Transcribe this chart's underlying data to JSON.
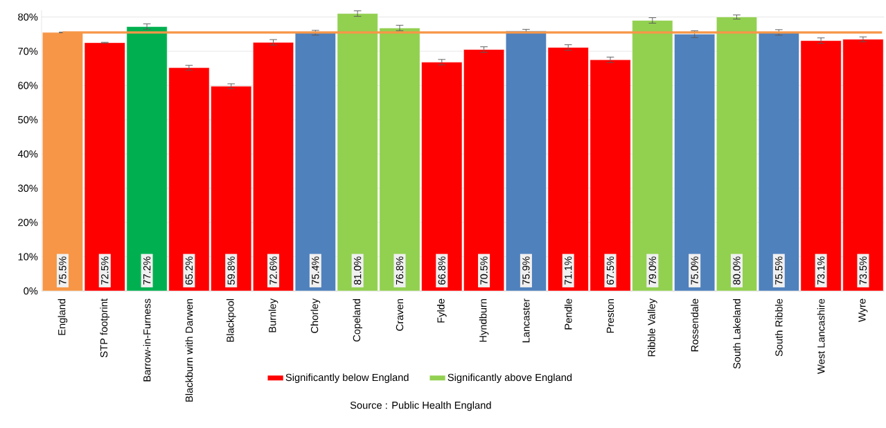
{
  "chart_data": {
    "type": "bar",
    "categories": [
      "England",
      "STP footprint",
      "Barrow-in-Furness",
      "Blackburn with Darwen",
      "Blackpool",
      "Burnley",
      "Chorley",
      "Copeland",
      "Craven",
      "Fylde",
      "Hyndburn",
      "Lancaster",
      "Pendle",
      "Preston",
      "Ribble Valley",
      "Rossendale",
      "South Lakeland",
      "South Ribble",
      "West Lancashire",
      "Wyre"
    ],
    "series": [
      {
        "color": "#f79646",
        "values": [
          75.5,
          null,
          null,
          null,
          null,
          null,
          null,
          null,
          null,
          null,
          null,
          null,
          null,
          null,
          null,
          null,
          null,
          null,
          null,
          null
        ],
        "errors": [
          0.1,
          null,
          null,
          null,
          null,
          null,
          null,
          null,
          null,
          null,
          null,
          null,
          null,
          null,
          null,
          null,
          null,
          null,
          null,
          null
        ],
        "value_labels": [
          "75.5%",
          null,
          null,
          null,
          null,
          null,
          null,
          null,
          null,
          null,
          null,
          null,
          null,
          null,
          null,
          null,
          null,
          null,
          null,
          null
        ]
      },
      {
        "color": "#4f81bd",
        "values": [
          null,
          null,
          null,
          null,
          null,
          null,
          75.4,
          null,
          null,
          null,
          null,
          75.9,
          null,
          null,
          null,
          75.0,
          null,
          75.5,
          null,
          null
        ],
        "errors": [
          null,
          null,
          null,
          null,
          null,
          null,
          0.7,
          null,
          null,
          null,
          null,
          0.5,
          null,
          null,
          null,
          1.0,
          null,
          0.8,
          null,
          null
        ],
        "value_labels": [
          null,
          null,
          null,
          null,
          null,
          null,
          "75.4%",
          null,
          null,
          null,
          null,
          "75.9%",
          null,
          null,
          null,
          "75.0%",
          null,
          "75.5%",
          null,
          null
        ]
      },
      {
        "name": "Significantly below England",
        "color": "#ff0000",
        "values": [
          null,
          72.5,
          null,
          65.2,
          59.8,
          72.6,
          null,
          null,
          null,
          66.8,
          70.5,
          null,
          71.1,
          67.5,
          null,
          null,
          null,
          null,
          73.1,
          73.5
        ],
        "errors": [
          null,
          0.1,
          null,
          0.7,
          0.7,
          0.8,
          null,
          null,
          null,
          0.8,
          0.8,
          null,
          0.8,
          0.8,
          null,
          null,
          null,
          null,
          0.8,
          0.7
        ],
        "value_labels": [
          null,
          "72.5%",
          null,
          "65.2%",
          "59.8%",
          "72.6%",
          null,
          null,
          null,
          "66.8%",
          "70.5%",
          null,
          "71.1%",
          "67.5%",
          null,
          null,
          null,
          null,
          "73.1%",
          "73.5%"
        ]
      },
      {
        "name": "Significantly above England",
        "color": "#92d050",
        "values": [
          null,
          null,
          null,
          null,
          null,
          null,
          null,
          81.0,
          76.8,
          null,
          null,
          null,
          null,
          null,
          79.0,
          null,
          80.0,
          null,
          null,
          null
        ],
        "errors": [
          null,
          null,
          null,
          null,
          null,
          null,
          null,
          0.8,
          0.8,
          null,
          null,
          null,
          null,
          null,
          0.8,
          null,
          0.6,
          null,
          null,
          null
        ],
        "value_labels": [
          null,
          null,
          null,
          null,
          null,
          null,
          null,
          "81.0%",
          "76.8%",
          null,
          null,
          null,
          null,
          null,
          "79.0%",
          null,
          "80.0%",
          null,
          null,
          null
        ]
      },
      {
        "color": "#00b050",
        "values": [
          null,
          null,
          77.2,
          null,
          null,
          null,
          null,
          null,
          null,
          null,
          null,
          null,
          null,
          null,
          null,
          null,
          null,
          null,
          null,
          null
        ],
        "errors": [
          null,
          null,
          0.8,
          null,
          null,
          null,
          null,
          null,
          null,
          null,
          null,
          null,
          null,
          null,
          null,
          null,
          null,
          null,
          null,
          null
        ],
        "value_labels": [
          null,
          null,
          "77.2%",
          null,
          null,
          null,
          null,
          null,
          null,
          null,
          null,
          null,
          null,
          null,
          null,
          null,
          null,
          null,
          null,
          null
        ]
      }
    ],
    "ylim": [
      0,
      82
    ],
    "yticks": [
      {
        "value": 0,
        "label": "0%"
      },
      {
        "value": 10,
        "label": "10%"
      },
      {
        "value": 20,
        "label": "20%"
      },
      {
        "value": 30,
        "label": "30%"
      },
      {
        "value": 40,
        "label": "40%"
      },
      {
        "value": 50,
        "label": "50%"
      },
      {
        "value": 60,
        "label": "60%"
      },
      {
        "value": 70,
        "label": "70%"
      },
      {
        "value": 80,
        "label": "80%"
      }
    ],
    "grid": "y",
    "legend": "bottom",
    "ref_lines": [
      {
        "axis": "y",
        "value": 75.5,
        "color": "#f79646"
      }
    ],
    "annotations": [
      "Source : Public Health England"
    ]
  }
}
